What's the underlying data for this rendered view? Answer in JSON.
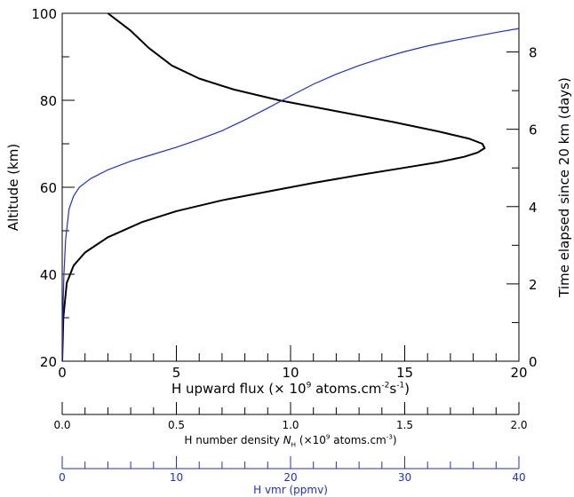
{
  "chart_data": {
    "type": "line",
    "title": "",
    "grid": false,
    "legend": "none",
    "x_axes": [
      {
        "label_parts": [
          "H upward flux (× 10",
          "9",
          " atoms.cm",
          "-2",
          "s",
          "-1",
          ")"
        ],
        "range": [
          0,
          20
        ],
        "ticks": [
          "0",
          "5",
          "10",
          "15",
          "20"
        ],
        "color": "#000000"
      },
      {
        "label_parts": [
          "H number density ",
          "N",
          "H",
          " (×10",
          "9",
          " atoms.cm",
          "-3",
          ")"
        ],
        "range": [
          0,
          2
        ],
        "ticks": [
          "0.0",
          "0.5",
          "1.0",
          "1.5",
          "2.0"
        ],
        "color": "#000000"
      },
      {
        "label_parts": [
          "H vmr (ppmv)"
        ],
        "range": [
          0,
          40
        ],
        "ticks": [
          "0",
          "10",
          "20",
          "30",
          "40"
        ],
        "color": "#1f2fd6"
      }
    ],
    "y_left": {
      "label": "Altitude (km)",
      "range": [
        20,
        100
      ],
      "ticks": [
        "20",
        "40",
        "60",
        "80",
        "100"
      ]
    },
    "y_right": {
      "label": "Time elapsed since 20 km (days)",
      "range": [
        0,
        9
      ],
      "ticks": [
        "0",
        "2",
        "4",
        "6",
        "8"
      ]
    },
    "series": [
      {
        "axis": "H upward flux",
        "color": "#000000",
        "points": [
          [
            0.0,
            20
          ],
          [
            0.05,
            30
          ],
          [
            0.2,
            38
          ],
          [
            0.5,
            42
          ],
          [
            1.0,
            45
          ],
          [
            2.0,
            48.5
          ],
          [
            3.5,
            52
          ],
          [
            5.0,
            54.5
          ],
          [
            7.0,
            57
          ],
          [
            9.0,
            59
          ],
          [
            11.0,
            61
          ],
          [
            13.0,
            62.8
          ],
          [
            15.0,
            64.5
          ],
          [
            16.5,
            65.8
          ],
          [
            17.6,
            67
          ],
          [
            18.2,
            68
          ],
          [
            18.5,
            69
          ],
          [
            18.4,
            70
          ],
          [
            17.8,
            71.2
          ],
          [
            16.5,
            72.8
          ],
          [
            14.5,
            75
          ],
          [
            12.0,
            77.5
          ],
          [
            9.5,
            80
          ],
          [
            7.5,
            82.5
          ],
          [
            6.0,
            85
          ],
          [
            4.8,
            88
          ],
          [
            3.8,
            92
          ],
          [
            3.0,
            96
          ],
          [
            2.0,
            100
          ]
        ]
      },
      {
        "axis": "H vmr",
        "color": "#1f2fd6",
        "points": [
          [
            0.0,
            20
          ],
          [
            0.05,
            30
          ],
          [
            0.15,
            40
          ],
          [
            0.3,
            48
          ],
          [
            0.6,
            55
          ],
          [
            1.0,
            58
          ],
          [
            1.5,
            60
          ],
          [
            2.5,
            62
          ],
          [
            4.0,
            64
          ],
          [
            6.0,
            66
          ],
          [
            8.0,
            67.6
          ],
          [
            10.0,
            69.2
          ],
          [
            12.0,
            71
          ],
          [
            14.0,
            73
          ],
          [
            16.0,
            75.5
          ],
          [
            18.0,
            78.2
          ],
          [
            20.0,
            81
          ],
          [
            22.0,
            83.7
          ],
          [
            24.0,
            86
          ],
          [
            26.0,
            88
          ],
          [
            28.0,
            89.7
          ],
          [
            30.0,
            91.2
          ],
          [
            32.0,
            92.5
          ],
          [
            34.0,
            93.6
          ],
          [
            36.0,
            94.6
          ],
          [
            38.0,
            95.6
          ],
          [
            40.0,
            96.5
          ]
        ]
      }
    ]
  }
}
